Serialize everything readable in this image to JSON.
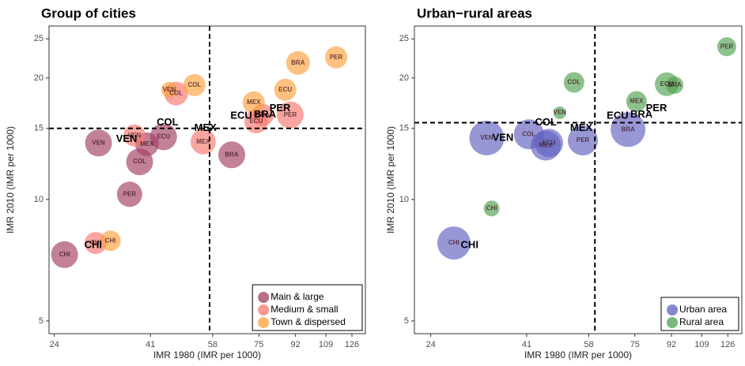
{
  "chart_data": [
    {
      "type": "scatter",
      "title": "Group of cities",
      "x_label": "IMR 1980 (IMR per 1000)",
      "y_label": "IMR 2010 (IMR per 1000)",
      "log_x": true,
      "log_y": true,
      "xlim": [
        23.3,
        135.8
      ],
      "ylim": [
        4.65,
        26.9
      ],
      "xticks": [
        24,
        41,
        58,
        75,
        92,
        109,
        126
      ],
      "yticks": [
        5,
        10,
        15,
        20,
        25
      ],
      "vline": 57,
      "hline": 15,
      "legend": "lower right",
      "series": [
        {
          "name": "Main & large",
          "color": "#a23e63",
          "labels": [
            "CHI",
            "VEN",
            "PER",
            "COL",
            "MEX",
            "ECU",
            "BRA"
          ],
          "x": [
            25.4,
            30.7,
            36.5,
            38.6,
            40.2,
            44.1,
            64.5
          ],
          "y": [
            7.3,
            13.8,
            10.3,
            12.4,
            13.7,
            14.3,
            12.9
          ],
          "sizes": [
            17,
            17,
            16,
            17,
            15,
            17,
            17
          ]
        },
        {
          "name": "Medium & small",
          "color": "#f8766d",
          "labels": [
            "CHI",
            "VEN",
            "COL",
            "MEX",
            "ECU",
            "BRA",
            "PER"
          ],
          "x": [
            30.2,
            37.5,
            47.3,
            55.0,
            73.9,
            76.6,
            89.3
          ],
          "y": [
            7.8,
            14.4,
            18.3,
            13.9,
            15.6,
            16.2,
            16.2
          ],
          "sizes": [
            14,
            14,
            15,
            16,
            15,
            14,
            17
          ]
        },
        {
          "name": "Town & dispersed",
          "color": "#fd9f3a",
          "labels": [
            "CHI",
            "VEN",
            "COL",
            "MEX",
            "ECU",
            "BRA",
            "PER"
          ],
          "x": [
            32.8,
            45.5,
            52.4,
            72.9,
            86.9,
            93.3,
            115.4
          ],
          "y": [
            7.9,
            18.7,
            19.2,
            17.4,
            18.7,
            21.8,
            22.5
          ],
          "sizes": [
            13,
            10,
            14,
            14,
            14,
            15,
            14
          ]
        }
      ],
      "annotations": {
        "labels": [
          "VEN",
          "CHI",
          "COL",
          "MEX",
          "ECU",
          "BRA",
          "PER"
        ],
        "x": [
          35.9,
          29.8,
          45.1,
          55.7,
          68.0,
          77.6,
          84.4
        ],
        "y": [
          14.1,
          7.7,
          15.5,
          15.0,
          16.1,
          16.2,
          16.8
        ]
      }
    },
    {
      "type": "scatter",
      "title": "Urban−rural areas",
      "x_label": "IMR 1980 (IMR per 1000)",
      "y_label": "IMR 2010 (IMR per 1000)",
      "log_x": true,
      "log_y": true,
      "xlim": [
        21.9,
        136.3
      ],
      "ylim": [
        4.65,
        26.9
      ],
      "xticks": [
        24,
        41,
        58,
        75,
        92,
        109,
        126
      ],
      "yticks": [
        5,
        10,
        15,
        20,
        25
      ],
      "vline": 60,
      "hline": 15.5,
      "legend": "lower right",
      "series": [
        {
          "name": "Urban area",
          "color": "#5f5fc0",
          "labels": [
            "CHI",
            "VEN",
            "COL",
            "MEX",
            "ECU",
            "PER",
            "BRA"
          ],
          "x": [
            27.3,
            32.8,
            41.5,
            45.6,
            46.4,
            56.1,
            72.2
          ],
          "y": [
            7.8,
            14.2,
            14.5,
            13.6,
            13.8,
            14.0,
            14.9
          ],
          "sizes": [
            21,
            22,
            19,
            19,
            18,
            19,
            22
          ]
        },
        {
          "name": "Rural area",
          "color": "#4f9f4f",
          "labels": [
            "CHI",
            "VEN",
            "COL",
            "MEX",
            "ECU",
            "BRA",
            "PER"
          ],
          "x": [
            33.7,
            49.3,
            53.4,
            75.7,
            89.6,
            93.7,
            125.3
          ],
          "y": [
            9.5,
            16.4,
            19.5,
            17.5,
            19.3,
            19.2,
            23.9
          ],
          "sizes": [
            10,
            8,
            13,
            13,
            15,
            11,
            12
          ]
        }
      ],
      "annotations": {
        "labels": [
          "VEN",
          "CHI",
          "COL",
          "MEX",
          "ECU",
          "BRA",
          "PER"
        ],
        "x": [
          35.9,
          29.8,
          45.6,
          55.6,
          68.1,
          77.8,
          84.6
        ],
        "y": [
          14.2,
          7.7,
          15.5,
          15.0,
          16.1,
          16.2,
          16.8
        ]
      }
    }
  ]
}
